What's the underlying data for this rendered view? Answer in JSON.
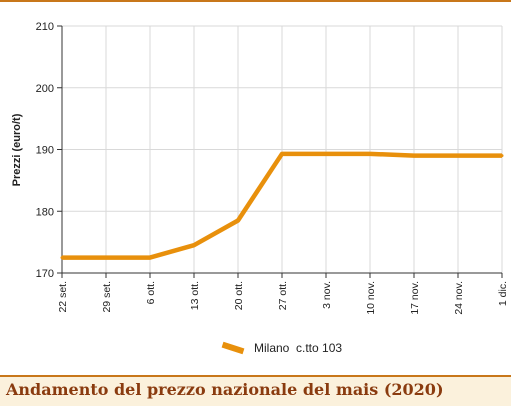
{
  "colors": {
    "accent": "#e8900c",
    "rule": "#c8771a",
    "grid": "#d9d9d9",
    "caption_bg": "#fbf1dc",
    "caption_text": "#8a3b0f"
  },
  "caption": "Andamento del prezzo nazionale del mais (2020)",
  "chart_data": {
    "type": "line",
    "title": "",
    "xlabel": "",
    "ylabel": "Prezzi (euro/t)",
    "categories": [
      "22 set.",
      "29 set.",
      "6 ott.",
      "13 ott.",
      "20 ott.",
      "27 ott.",
      "3 nov.",
      "10 nov.",
      "17 nov.",
      "24 nov.",
      "1 dic."
    ],
    "yticks": [
      170,
      180,
      190,
      200,
      210
    ],
    "ylim": [
      170,
      210
    ],
    "grid": true,
    "legend_position": "bottom",
    "series": [
      {
        "name": "Milano  c.tto 103",
        "values": [
          172.5,
          172.5,
          172.5,
          174.5,
          178.5,
          189.3,
          189.3,
          189.3,
          189.0,
          189.0,
          189.0
        ]
      }
    ]
  }
}
